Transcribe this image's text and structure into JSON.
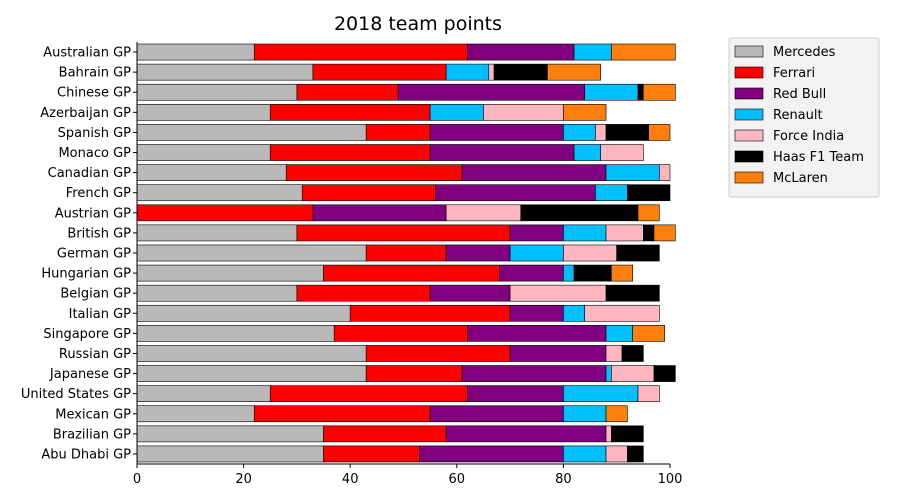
{
  "chart_data": {
    "type": "bar",
    "orientation": "horizontal",
    "stacked": true,
    "title": "2018 team points",
    "xlabel": "",
    "ylabel": "",
    "xlim": [
      0,
      100
    ],
    "xticks": [
      0,
      20,
      40,
      60,
      80,
      100
    ],
    "grid": false,
    "legend_position": "outside-top-right",
    "categories": [
      "Australian GP",
      "Bahrain GP",
      "Chinese GP",
      "Azerbaijan GP",
      "Spanish GP",
      "Monaco GP",
      "Canadian GP",
      "French GP",
      "Austrian GP",
      "British GP",
      "German GP",
      "Hungarian GP",
      "Belgian GP",
      "Italian GP",
      "Singapore GP",
      "Russian GP",
      "Japanese GP",
      "United States GP",
      "Mexican GP",
      "Brazilian GP",
      "Abu Dhabi GP"
    ],
    "series": [
      {
        "name": "Mercedes",
        "color": "#b9b9b9",
        "values": [
          22,
          33,
          30,
          25,
          43,
          25,
          28,
          31,
          0,
          30,
          43,
          35,
          30,
          40,
          37,
          43,
          43,
          25,
          22,
          35,
          35
        ]
      },
      {
        "name": "Ferrari",
        "color": "#ff0000",
        "values": [
          40,
          25,
          19,
          30,
          12,
          30,
          33,
          25,
          33,
          40,
          15,
          33,
          25,
          30,
          25,
          27,
          18,
          37,
          33,
          23,
          18
        ]
      },
      {
        "name": "Red Bull",
        "color": "#800080",
        "values": [
          20,
          0,
          35,
          0,
          25,
          27,
          27,
          30,
          25,
          10,
          12,
          12,
          15,
          10,
          26,
          18,
          27,
          18,
          25,
          30,
          27
        ]
      },
      {
        "name": "Renault",
        "color": "#00bfff",
        "values": [
          7,
          8,
          10,
          10,
          6,
          5,
          10,
          6,
          0,
          8,
          10,
          2,
          0,
          4,
          5,
          0,
          1,
          14,
          8,
          0,
          8
        ]
      },
      {
        "name": "Force India",
        "color": "#ffb6c1",
        "values": [
          0,
          1,
          0,
          15,
          2,
          8,
          2,
          0,
          14,
          7,
          10,
          0,
          18,
          14,
          0,
          3,
          8,
          4,
          0,
          1,
          4
        ]
      },
      {
        "name": "Haas F1 Team",
        "color": "#000000",
        "values": [
          0,
          10,
          1,
          0,
          8,
          0,
          0,
          8,
          22,
          2,
          8,
          7,
          10,
          0,
          0,
          4,
          4,
          0,
          0,
          6,
          3
        ]
      },
      {
        "name": "McLaren",
        "color": "#ff7f0e",
        "values": [
          12,
          10,
          6,
          8,
          4,
          0,
          0,
          0,
          4,
          4,
          0,
          4,
          0,
          0,
          6,
          0,
          0,
          0,
          4,
          0,
          0
        ]
      }
    ]
  }
}
